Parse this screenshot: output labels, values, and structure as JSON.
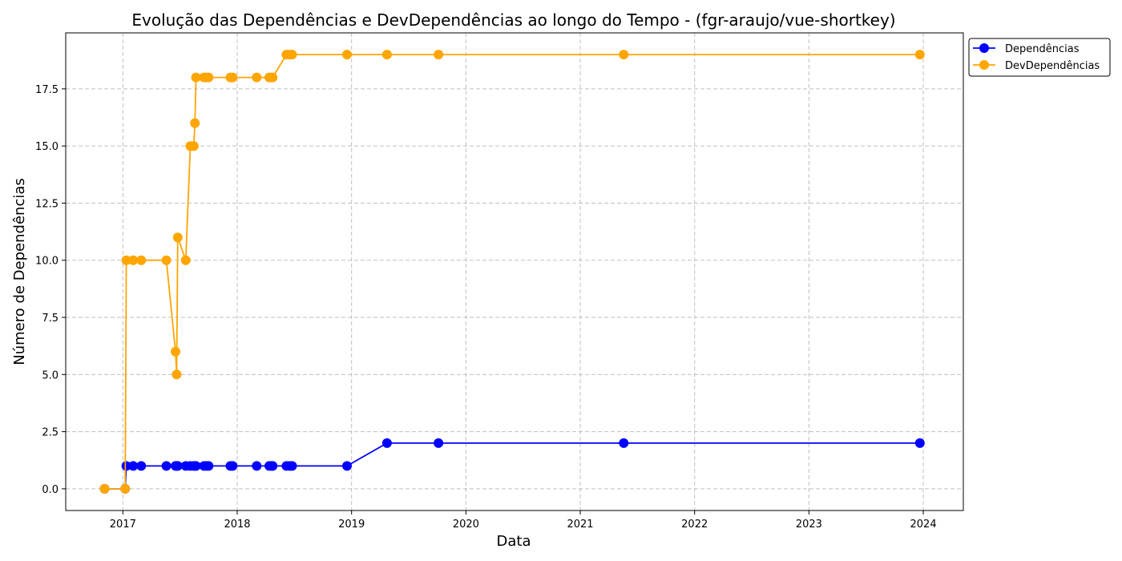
{
  "chart_data": {
    "type": "line",
    "title": "Evolução das Dependências e DevDependências ao longo do Tempo - (fgr-araujo/vue-shortkey)",
    "xlabel": "Data",
    "ylabel": "Número de Dependências",
    "xlim": [
      2016.5,
      2024.35
    ],
    "ylim": [
      -0.95,
      19.95
    ],
    "x_ticks": [
      2017,
      2018,
      2019,
      2020,
      2021,
      2022,
      2023,
      2024
    ],
    "x_tick_labels": [
      "2017",
      "2018",
      "2019",
      "2020",
      "2021",
      "2022",
      "2023",
      "2024"
    ],
    "y_ticks": [
      0,
      2.5,
      5,
      7.5,
      10,
      12.5,
      15,
      17.5
    ],
    "y_tick_labels": [
      "0.0",
      "2.5",
      "5.0",
      "7.5",
      "10.0",
      "12.5",
      "15.0",
      "17.5"
    ],
    "grid": true,
    "legend_position": "outside-top-right",
    "x": [
      2016.84,
      2017.02,
      2017.03,
      2017.09,
      2017.16,
      2017.38,
      2017.46,
      2017.47,
      2017.48,
      2017.55,
      2017.59,
      2017.62,
      2017.63,
      2017.64,
      2017.71,
      2017.73,
      2017.75,
      2017.94,
      2017.96,
      2018.17,
      2018.28,
      2018.3,
      2018.31,
      2018.43,
      2018.46,
      2018.48,
      2018.96,
      2019.31,
      2019.76,
      2021.38,
      2023.97
    ],
    "series": [
      {
        "name": "Dependências",
        "color": "#0000ff",
        "values": [
          0,
          0,
          1,
          1,
          1,
          1,
          1,
          1,
          1,
          1,
          1,
          1,
          1,
          1,
          1,
          1,
          1,
          1,
          1,
          1,
          1,
          1,
          1,
          1,
          1,
          1,
          1,
          2,
          2,
          2,
          2
        ]
      },
      {
        "name": "DevDependências",
        "color": "#ffa500",
        "values": [
          0,
          0,
          10,
          10,
          10,
          10,
          6,
          5,
          11,
          10,
          15,
          15,
          16,
          18,
          18,
          18,
          18,
          18,
          18,
          18,
          18,
          18,
          18,
          19,
          19,
          19,
          19,
          19,
          19,
          19,
          19
        ]
      }
    ]
  }
}
